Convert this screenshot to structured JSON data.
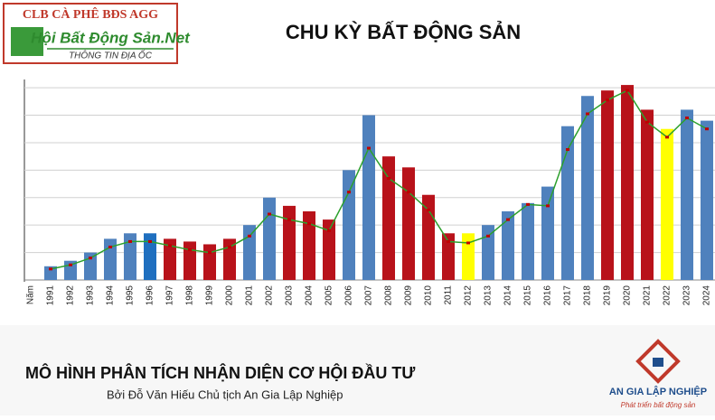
{
  "header": {
    "club": "CLB CÀ PHÊ BĐS AGG",
    "site": "Hội Bất Động Sản.Net",
    "tagline": "THÔNG TIN ĐỊA ỐC"
  },
  "chart_data": {
    "type": "bar",
    "title": "CHU KỲ BẤT ĐỘNG SẢN",
    "categories": [
      "Năm",
      "1991",
      "1992",
      "1993",
      "1994",
      "1995",
      "1996",
      "1997",
      "1998",
      "1999",
      "2000",
      "2001",
      "2002",
      "2003",
      "2004",
      "2005",
      "2006",
      "2007",
      "2008",
      "2009",
      "2010",
      "2011",
      "2012",
      "2013",
      "2014",
      "2015",
      "2016",
      "2017",
      "2018",
      "2019",
      "2020",
      "2021",
      "2022",
      "2023",
      "2024"
    ],
    "series": [
      {
        "type": "bar",
        "values": [
          null,
          0.5,
          0.7,
          1.0,
          1.5,
          1.7,
          1.7,
          1.5,
          1.4,
          1.3,
          1.5,
          2.0,
          3.0,
          2.7,
          2.5,
          2.2,
          4.0,
          6.0,
          4.5,
          4.1,
          3.1,
          1.7,
          1.7,
          2.0,
          2.5,
          2.8,
          3.4,
          5.6,
          6.7,
          6.9,
          7.1,
          6.2,
          5.5,
          6.2,
          5.8
        ],
        "colors": [
          null,
          "#4f81bd",
          "#4f81bd",
          "#4f81bd",
          "#4f81bd",
          "#4f81bd",
          "#1f6fbf",
          "#b8121a",
          "#b8121a",
          "#b8121a",
          "#b8121a",
          "#4f81bd",
          "#4f81bd",
          "#b8121a",
          "#b8121a",
          "#b8121a",
          "#4f81bd",
          "#4f81bd",
          "#b8121a",
          "#b8121a",
          "#b8121a",
          "#b8121a",
          "#ffff00",
          "#4f81bd",
          "#4f81bd",
          "#4f81bd",
          "#4f81bd",
          "#4f81bd",
          "#4f81bd",
          "#b8121a",
          "#b8121a",
          "#b8121a",
          "#ffff00",
          "#4f81bd",
          "#4f81bd"
        ]
      },
      {
        "type": "line",
        "color": "#2ca02c",
        "marker_color": "#c00000",
        "values": [
          null,
          0.4,
          0.55,
          0.8,
          1.2,
          1.4,
          1.4,
          1.25,
          1.1,
          1.0,
          1.2,
          1.6,
          2.4,
          2.2,
          2.05,
          1.8,
          3.2,
          4.8,
          3.7,
          3.2,
          2.55,
          1.4,
          1.35,
          1.6,
          2.2,
          2.75,
          2.7,
          4.75,
          6.05,
          6.55,
          6.9,
          5.75,
          5.2,
          5.9,
          5.5
        ]
      }
    ],
    "ylim": [
      0,
      7.3
    ],
    "yticks": [
      0,
      1,
      2,
      3,
      4,
      5,
      6,
      7
    ],
    "grid": true
  },
  "footer": {
    "headline": "MÔ HÌNH PHÂN TÍCH NHẬN DIỆN CƠ HỘI ĐẦU TƯ",
    "byline": "Bởi Đỗ Văn Hiếu Chủ tịch An Gia Lập Nghiệp",
    "brand": "AN GIA LẬP NGHIỆP",
    "brand_tagline": "Phát triển bất động sản"
  }
}
